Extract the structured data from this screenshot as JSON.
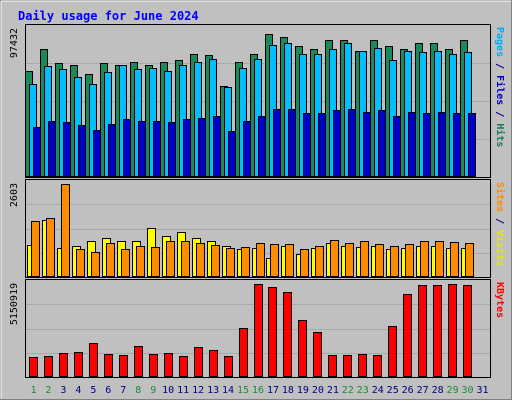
{
  "chart_data": {
    "type": "bar",
    "title": "Daily usage for June 2024",
    "x": [
      1,
      2,
      3,
      4,
      5,
      6,
      7,
      8,
      9,
      10,
      11,
      12,
      13,
      14,
      15,
      16,
      17,
      18,
      19,
      20,
      21,
      22,
      23,
      24,
      25,
      26,
      27,
      28,
      29,
      30
    ],
    "x_labels": [
      "1",
      "2",
      "3",
      "4",
      "5",
      "6",
      "7",
      "8",
      "9",
      "10",
      "11",
      "12",
      "13",
      "14",
      "15",
      "16",
      "17",
      "18",
      "19",
      "20",
      "21",
      "22",
      "23",
      "24",
      "25",
      "26",
      "27",
      "28",
      "29",
      "30",
      "31"
    ],
    "weekend_days": [
      1,
      2,
      8,
      9,
      15,
      16,
      22,
      23,
      29,
      30
    ],
    "panels": [
      {
        "id": "hits",
        "ymax": 97432,
        "ymax_label": "97432",
        "ylim": [
          0,
          97432
        ],
        "side_label_parts": [
          {
            "text": "Pages",
            "color": "#00aaff"
          },
          {
            "text": " / ",
            "color": "#000080"
          },
          {
            "text": "Files",
            "color": "#0000cc"
          },
          {
            "text": " / ",
            "color": "#000080"
          },
          {
            "text": "Hits",
            "color": "#1b7a54"
          }
        ],
        "series": [
          {
            "name": "Hits",
            "color": "#1b8a5a",
            "values": [
              70000,
              84000,
              75000,
              74000,
              68000,
              75000,
              74000,
              76000,
              74000,
              76000,
              77000,
              81000,
              80000,
              60000,
              76000,
              81000,
              94000,
              92000,
              86000,
              84000,
              90000,
              90000,
              83000,
              90000,
              86000,
              84000,
              88000,
              88000,
              84000,
              90000
            ]
          },
          {
            "name": "Files",
            "color": "#00bfff",
            "values": [
              61000,
              73000,
              71000,
              66000,
              61000,
              69000,
              74000,
              71000,
              72000,
              70000,
              74000,
              76000,
              78000,
              59000,
              72000,
              78000,
              87000,
              88000,
              81000,
              81000,
              84000,
              88000,
              83000,
              85000,
              77000,
              83000,
              82000,
              83000,
              81000,
              82000
            ]
          },
          {
            "name": "Pages",
            "color": "#0000cc",
            "values": [
              33000,
              37000,
              36000,
              34000,
              31000,
              35000,
              38000,
              37000,
              37000,
              36000,
              38000,
              39000,
              40000,
              30000,
              37000,
              40000,
              45000,
              45000,
              42000,
              42000,
              44000,
              45000,
              43000,
              44000,
              40000,
              43000,
              42000,
              43000,
              42000,
              42000
            ]
          }
        ]
      },
      {
        "id": "visits",
        "ymax": 2603,
        "ymax_label": "2603",
        "ylim": [
          0,
          2603
        ],
        "side_label_parts": [
          {
            "text": "Sites",
            "color": "#ff8c00"
          },
          {
            "text": " / ",
            "color": "#000080"
          },
          {
            "text": "Visits",
            "color": "#e8e800"
          }
        ],
        "series": [
          {
            "name": "Visits",
            "color": "#ffff00",
            "values": [
              900,
              1600,
              800,
              860,
              1000,
              1100,
              1000,
              1000,
              1380,
              1160,
              1270,
              1080,
              1000,
              860,
              780,
              800,
              540,
              860,
              640,
              800,
              950,
              860,
              840,
              860,
              780,
              800,
              860,
              860,
              800,
              800
            ]
          },
          {
            "name": "Sites",
            "color": "#ff8c00",
            "values": [
              1570,
              1640,
              2603,
              790,
              700,
              940,
              780,
              860,
              840,
              1000,
              1000,
              940,
              890,
              800,
              840,
              940,
              920,
              910,
              790,
              860,
              1040,
              960,
              1000,
              920,
              860,
              920,
              1000,
              1000,
              970,
              940
            ]
          }
        ]
      },
      {
        "id": "kbytes",
        "ymax": 5150919,
        "ymax_label": "5150919",
        "ylim": [
          0,
          5150919
        ],
        "side_label_parts": [
          {
            "text": "KBytes",
            "color": "#ff0000"
          }
        ],
        "series": [
          {
            "name": "KBytes",
            "color": "#ff0000",
            "values": [
              1100000,
              1180000,
              1320000,
              1380000,
              1900000,
              1250000,
              1200000,
              1700000,
              1300000,
              1350000,
              1180000,
              1650000,
              1480000,
              1180000,
              2700000,
              5150919,
              5000000,
              4720000,
              3150000,
              2500000,
              1200000,
              1230000,
              1270000,
              1200000,
              2850000,
              4600000,
              5100000,
              5100000,
              5150000,
              5100000
            ]
          }
        ]
      }
    ]
  }
}
